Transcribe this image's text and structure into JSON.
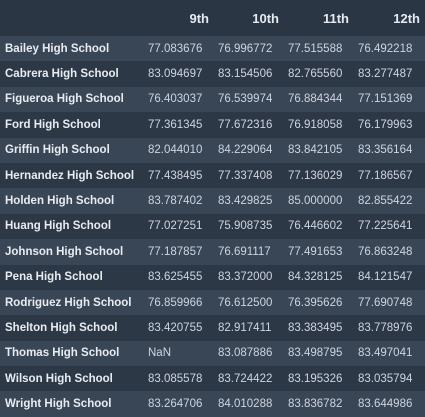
{
  "table": {
    "columns": [
      "",
      "9th",
      "10th",
      "11th",
      "12th"
    ],
    "rows": [
      {
        "school": "Bailey High School",
        "values": [
          "77.083676",
          "76.996772",
          "77.515588",
          "76.492218"
        ]
      },
      {
        "school": "Cabrera High School",
        "values": [
          "83.094697",
          "83.154506",
          "82.765560",
          "83.277487"
        ]
      },
      {
        "school": "Figueroa High School",
        "values": [
          "76.403037",
          "76.539974",
          "76.884344",
          "77.151369"
        ]
      },
      {
        "school": "Ford High School",
        "values": [
          "77.361345",
          "77.672316",
          "76.918058",
          "76.179963"
        ]
      },
      {
        "school": "Griffin High School",
        "values": [
          "82.044010",
          "84.229064",
          "83.842105",
          "83.356164"
        ]
      },
      {
        "school": "Hernandez High School",
        "values": [
          "77.438495",
          "77.337408",
          "77.136029",
          "77.186567"
        ]
      },
      {
        "school": "Holden High School",
        "values": [
          "83.787402",
          "83.429825",
          "85.000000",
          "82.855422"
        ]
      },
      {
        "school": "Huang High School",
        "values": [
          "77.027251",
          "75.908735",
          "76.446602",
          "77.225641"
        ]
      },
      {
        "school": "Johnson High School",
        "values": [
          "77.187857",
          "76.691117",
          "77.491653",
          "76.863248"
        ]
      },
      {
        "school": "Pena High School",
        "values": [
          "83.625455",
          "83.372000",
          "84.328125",
          "84.121547"
        ]
      },
      {
        "school": "Rodriguez High School",
        "values": [
          "76.859966",
          "76.612500",
          "76.395626",
          "77.690748"
        ]
      },
      {
        "school": "Shelton High School",
        "values": [
          "83.420755",
          "82.917411",
          "83.383495",
          "83.778976"
        ]
      },
      {
        "school": "Thomas High School",
        "values": [
          "NaN",
          "83.087886",
          "83.498795",
          "83.497041"
        ]
      },
      {
        "school": "Wilson High School",
        "values": [
          "83.085578",
          "83.724422",
          "83.195326",
          "83.035794"
        ]
      },
      {
        "school": "Wright High School",
        "values": [
          "83.264706",
          "84.010288",
          "83.836782",
          "83.644986"
        ]
      }
    ]
  },
  "colors": {
    "background": "#2b3644",
    "row_odd": "#394656",
    "row_even": "#2d3847",
    "text": "#ced5df"
  }
}
